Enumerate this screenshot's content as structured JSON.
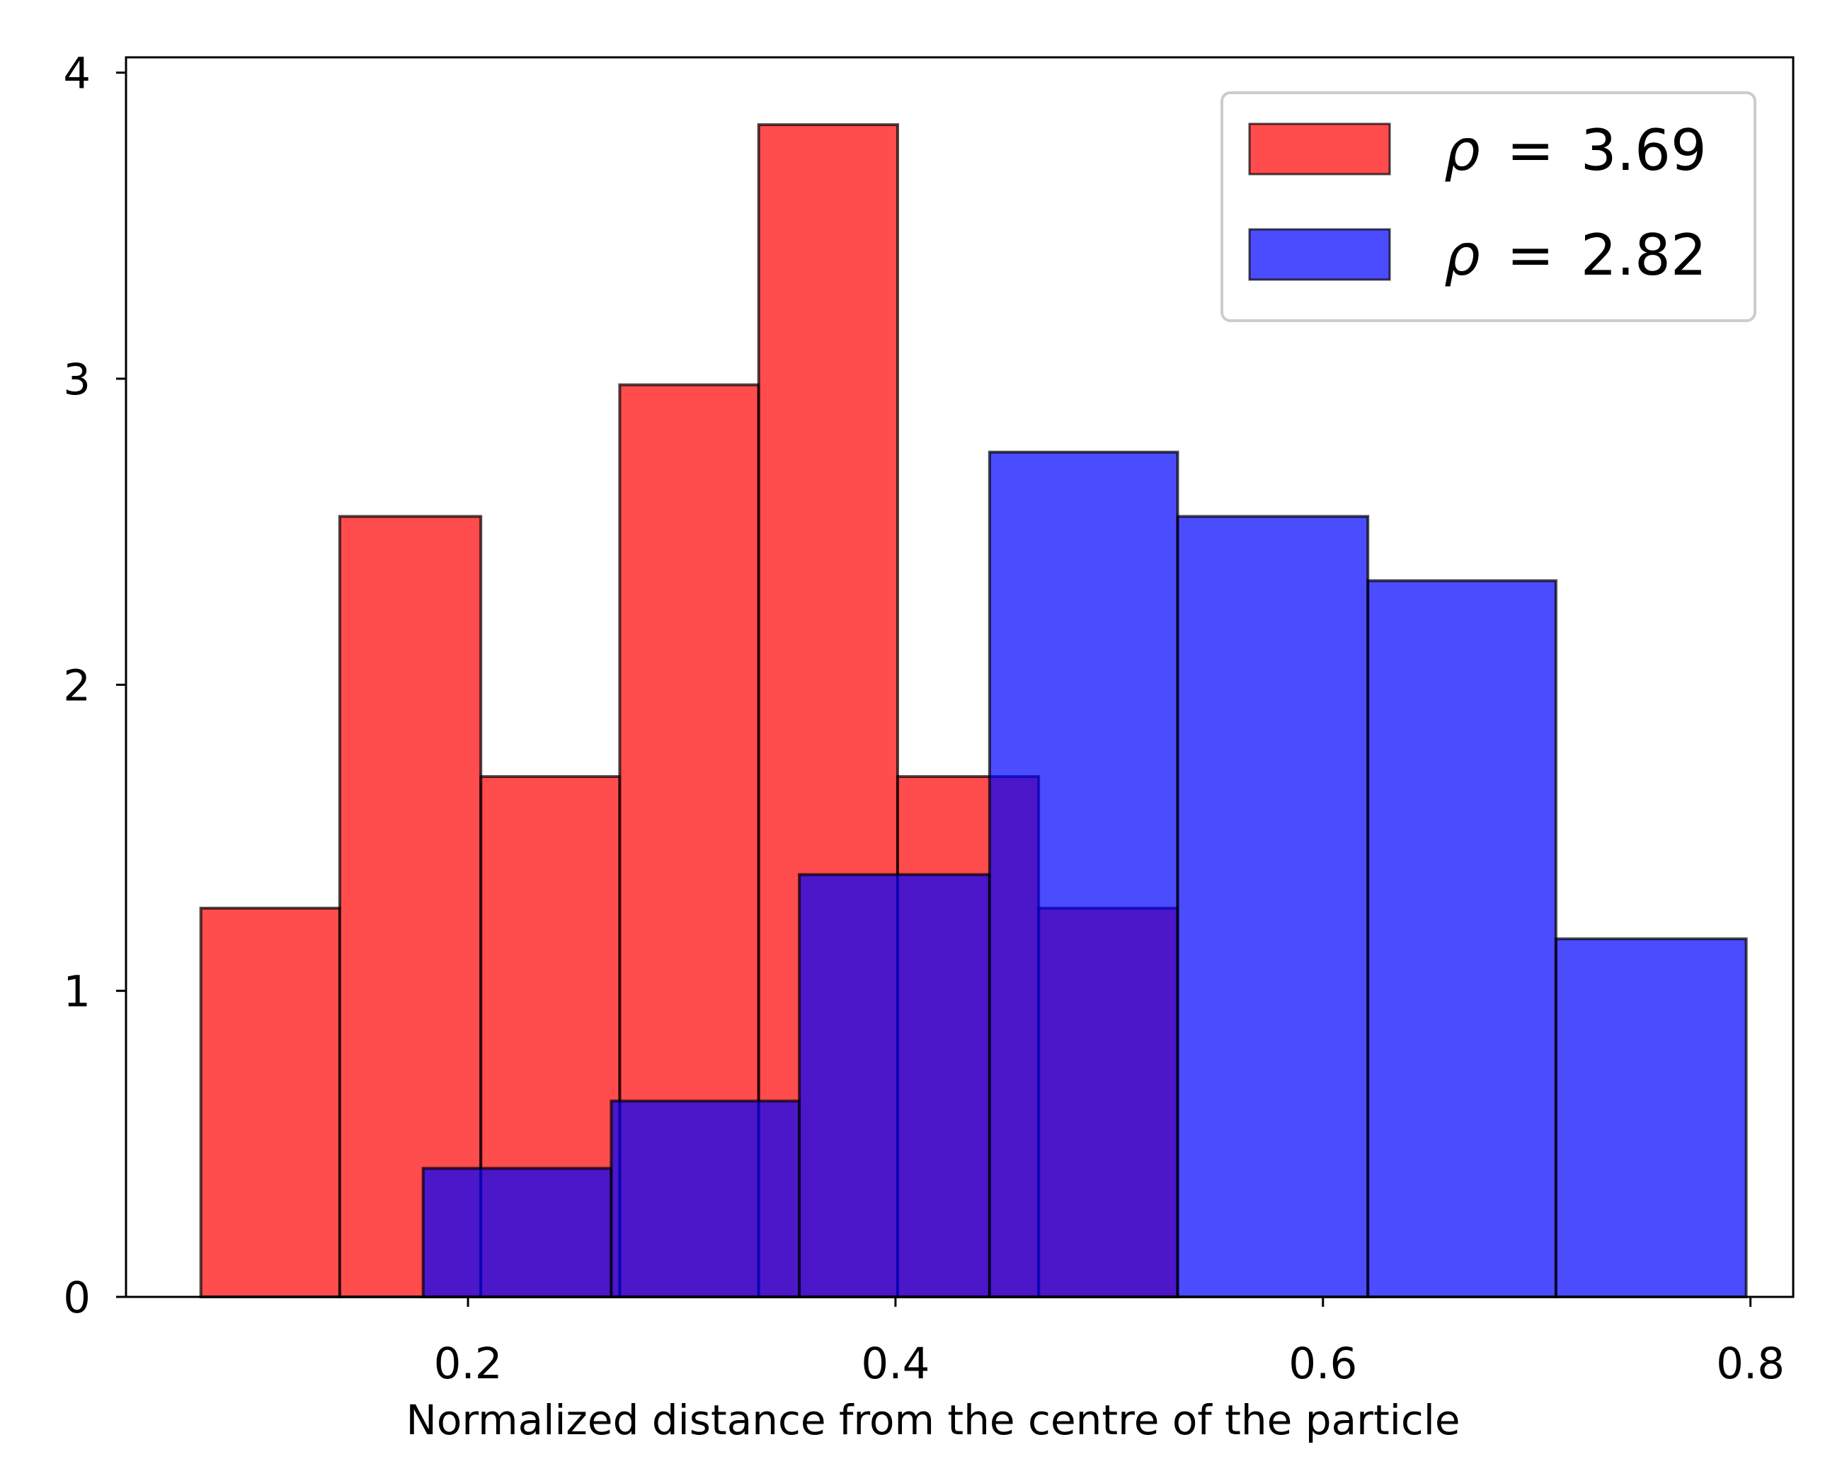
{
  "chart_data": {
    "type": "histogram",
    "title": "",
    "xlabel": "Normalized distance from the centre of the particle",
    "ylabel": "",
    "xlim": [
      0.04,
      0.82
    ],
    "ylim": [
      0,
      4.05
    ],
    "xticks": [
      {
        "value": 0.2,
        "label": "0.2"
      },
      {
        "value": 0.4,
        "label": "0.4"
      },
      {
        "value": 0.6,
        "label": "0.6"
      },
      {
        "value": 0.8,
        "label": "0.8"
      }
    ],
    "yticks": [
      {
        "value": 0,
        "label": "0"
      },
      {
        "value": 1,
        "label": "1"
      },
      {
        "value": 2,
        "label": "2"
      },
      {
        "value": 3,
        "label": "3"
      },
      {
        "value": 4,
        "label": "4"
      }
    ],
    "grid": false,
    "legend_position": "top-right",
    "series": [
      {
        "name": "ρ = 3.69",
        "rho": "3.69",
        "color": "#ff0000",
        "bins": [
          {
            "x0": 0.075,
            "x1": 0.14,
            "value": 1.27
          },
          {
            "x0": 0.14,
            "x1": 0.206,
            "value": 2.55
          },
          {
            "x0": 0.206,
            "x1": 0.271,
            "value": 1.7
          },
          {
            "x0": 0.271,
            "x1": 0.336,
            "value": 2.98
          },
          {
            "x0": 0.336,
            "x1": 0.401,
            "value": 3.83
          },
          {
            "x0": 0.401,
            "x1": 0.467,
            "value": 1.7
          },
          {
            "x0": 0.467,
            "x1": 0.532,
            "value": 1.27
          }
        ]
      },
      {
        "name": "ρ = 2.82",
        "rho": "2.82",
        "color": "#0000ff",
        "bins": [
          {
            "x0": 0.179,
            "x1": 0.267,
            "value": 0.42
          },
          {
            "x0": 0.267,
            "x1": 0.355,
            "value": 0.64
          },
          {
            "x0": 0.355,
            "x1": 0.444,
            "value": 1.38
          },
          {
            "x0": 0.444,
            "x1": 0.532,
            "value": 2.76
          },
          {
            "x0": 0.532,
            "x1": 0.621,
            "value": 2.55
          },
          {
            "x0": 0.621,
            "x1": 0.709,
            "value": 2.34
          },
          {
            "x0": 0.709,
            "x1": 0.798,
            "value": 1.17
          }
        ]
      }
    ],
    "legend": {
      "entries": [
        {
          "symbol": "ρ",
          "equals": "=",
          "value": "3.69",
          "color": "#ff0000"
        },
        {
          "symbol": "ρ",
          "equals": "=",
          "value": "2.82",
          "color": "#0000ff"
        }
      ]
    }
  }
}
